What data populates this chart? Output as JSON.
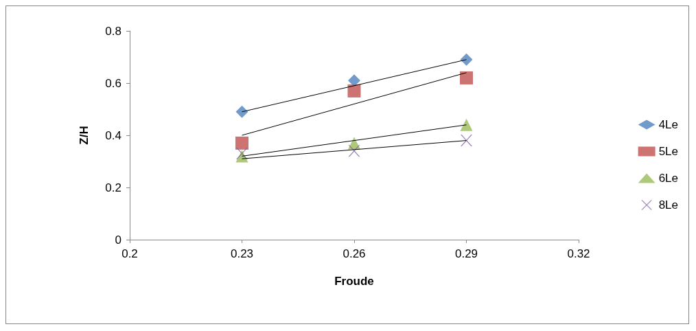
{
  "chart_data": {
    "type": "scatter",
    "xlabel": "Froude",
    "ylabel": "Z/H",
    "xlim": [
      0.2,
      0.32
    ],
    "xticks": [
      0.2,
      0.23,
      0.26,
      0.29,
      0.32
    ],
    "ylim": [
      0,
      0.8
    ],
    "yticks": [
      0,
      0.2,
      0.4,
      0.6,
      0.8
    ],
    "grid": false,
    "legend": "right",
    "series": [
      {
        "name": "4Le",
        "color": "#4f81bd",
        "marker": "diamond",
        "x": [
          0.23,
          0.26,
          0.29
        ],
        "values": [
          0.49,
          0.61,
          0.69
        ]
      },
      {
        "name": "5Le",
        "color": "#c0504d",
        "marker": "square",
        "x": [
          0.23,
          0.26,
          0.29
        ],
        "values": [
          0.37,
          0.57,
          0.62
        ]
      },
      {
        "name": "6Le",
        "color": "#9bbb59",
        "marker": "triangle",
        "x": [
          0.23,
          0.26,
          0.29
        ],
        "values": [
          0.32,
          0.37,
          0.44
        ]
      },
      {
        "name": "8Le",
        "color": "#8064a2",
        "marker": "cross",
        "x": [
          0.23,
          0.26,
          0.29
        ],
        "values": [
          0.33,
          0.34,
          0.38
        ]
      },
      {
        "type": "line",
        "color": "#000000",
        "marker": "none",
        "x": [
          0.23,
          0.29
        ],
        "values": [
          0.49,
          0.69
        ]
      },
      {
        "type": "line",
        "color": "#000000",
        "marker": "none",
        "x": [
          0.23,
          0.29
        ],
        "values": [
          0.4,
          0.64
        ]
      },
      {
        "type": "line",
        "color": "#000000",
        "marker": "none",
        "x": [
          0.23,
          0.29
        ],
        "values": [
          0.32,
          0.44
        ]
      },
      {
        "type": "line",
        "color": "#000000",
        "marker": "none",
        "x": [
          0.23,
          0.29
        ],
        "values": [
          0.31,
          0.38
        ]
      }
    ]
  }
}
